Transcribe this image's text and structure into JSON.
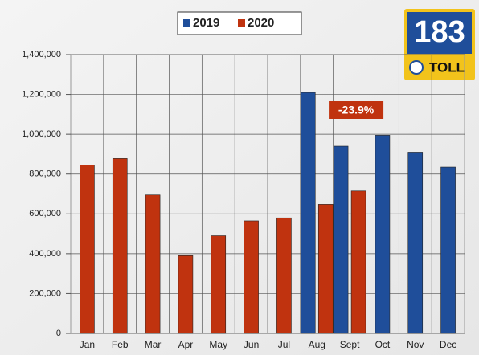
{
  "chart_data": {
    "type": "bar",
    "categories": [
      "Jan",
      "Feb",
      "Mar",
      "Apr",
      "May",
      "Jun",
      "Jul",
      "Aug",
      "Sept",
      "Oct",
      "Nov",
      "Dec"
    ],
    "series": [
      {
        "name": "2019",
        "color": "#1f4e9a",
        "values": [
          null,
          null,
          null,
          null,
          null,
          null,
          null,
          1210000,
          940000,
          995000,
          910000,
          835000
        ]
      },
      {
        "name": "2020",
        "color": "#c0330f",
        "values": [
          845000,
          878000,
          695000,
          390000,
          490000,
          565000,
          580000,
          648000,
          715000,
          null,
          null,
          null
        ]
      }
    ],
    "ylim": [
      0,
      1400000
    ],
    "yticks": [
      0,
      {
        "value": 200000,
        "label": "200,000"
      },
      {
        "value": 400000,
        "label": "400,000"
      },
      {
        "value": 600000,
        "label": "600,000"
      },
      {
        "value": 800000,
        "label": "800,000"
      },
      {
        "value": 1000000,
        "label": "1,000,000"
      },
      {
        "value": 1200000,
        "label": "1,200,000"
      },
      {
        "value": 1400000,
        "label": "1,400,000"
      }
    ],
    "grid": true,
    "annotation": "-23.9%",
    "logo": {
      "number": "183",
      "text": "TOLL"
    }
  }
}
